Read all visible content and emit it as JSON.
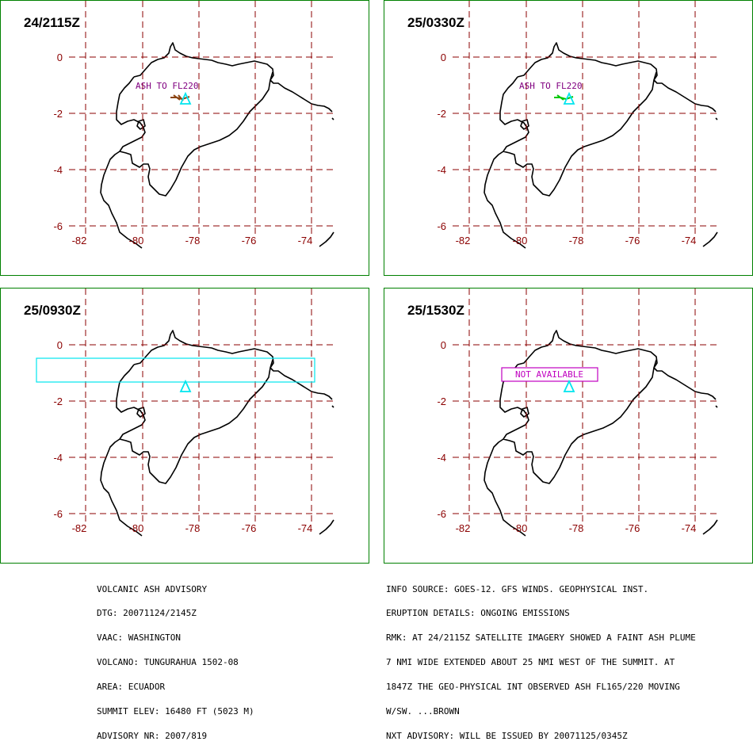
{
  "colors": {
    "panel_border": "#008000",
    "grid": "#8b0000",
    "tick_label": "#8b0000",
    "coast": "#000000",
    "volcano": "#00e5ee",
    "ash_label": "#800080",
    "plume_early": "#8b4513",
    "plume_late": "#00c800",
    "forecast_box": "#00e5ee",
    "not_available": "#c000c0"
  },
  "map_axes": {
    "lon_ticks": [
      "-82",
      "-80",
      "-78",
      "-76",
      "-74"
    ],
    "lat_ticks": [
      "0",
      "-2",
      "-4",
      "-6"
    ]
  },
  "panels": [
    {
      "id": "p1",
      "time": "24/2115Z",
      "label": "ASH TO FL220",
      "plume": "observed-brown"
    },
    {
      "id": "p2",
      "time": "25/0330Z",
      "label": "ASH TO FL220",
      "plume": "forecast-green"
    },
    {
      "id": "p3",
      "time": "25/0930Z",
      "label": "",
      "plume": "forecast-box"
    },
    {
      "id": "p4",
      "time": "25/1530Z",
      "label": "NOT AVAILABLE",
      "plume": "not-available"
    }
  ],
  "advisory_left": [
    "VOLCANIC ASH ADVISORY",
    "DTG: 20071124/2145Z",
    "VAAC: WASHINGTON",
    "VOLCANO: TUNGURAHUA 1502-08",
    "AREA: ECUADOR",
    "SUMMIT ELEV: 16480 FT (5023 M)",
    "ADVISORY NR: 2007/819"
  ],
  "advisory_right": [
    "INFO SOURCE: GOES-12. GFS WINDS. GEOPHYSICAL INST.",
    "ERUPTION DETAILS: ONGOING EMISSIONS",
    "RMK: AT 24/2115Z SATELLITE IMAGERY SHOWED A FAINT ASH PLUME",
    "7 NMI WIDE EXTENDED ABOUT 25 NMI WEST OF THE SUMMIT. AT",
    "1847Z THE GEO-PHYSICAL INT OBSERVED ASH FL165/220 MOVING",
    "W/SW. ...BROWN",
    "NXT ADVISORY: WILL BE ISSUED BY 20071125/0345Z"
  ]
}
